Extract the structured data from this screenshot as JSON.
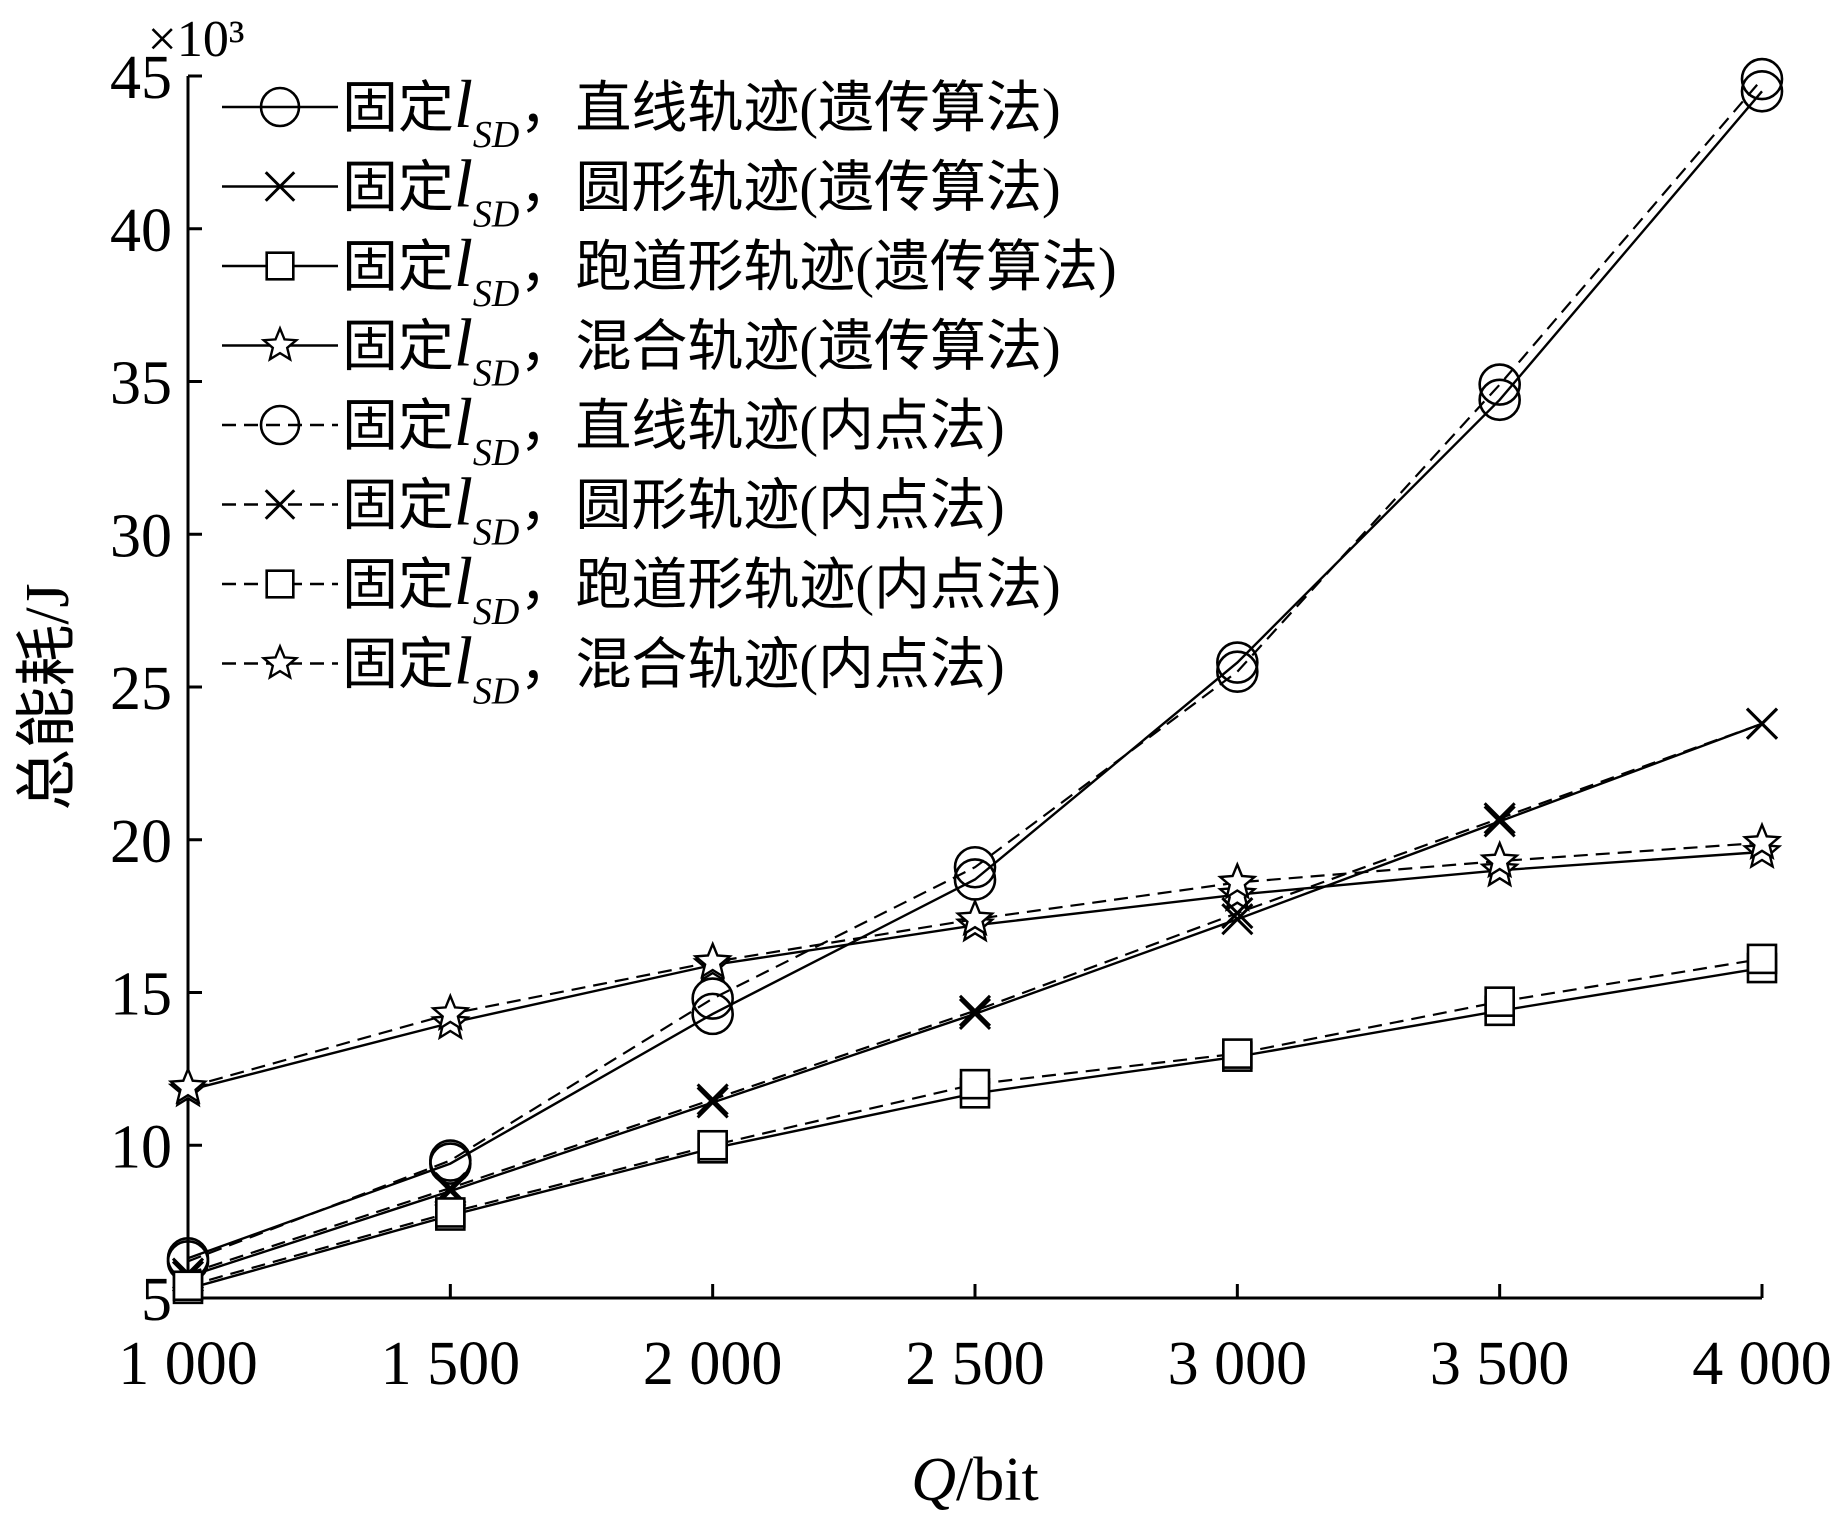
{
  "chart_data": {
    "type": "line",
    "x": [
      1000,
      1500,
      2000,
      2500,
      3000,
      3500,
      4000
    ],
    "x_tick_labels": [
      "1 000",
      "1 500",
      "2 000",
      "2 500",
      "3 000",
      "3 500",
      "4 000"
    ],
    "xlim": [
      1000,
      4000
    ],
    "ylim": [
      5,
      45
    ],
    "y_ticks": [
      5,
      10,
      15,
      20,
      25,
      30,
      35,
      40,
      45
    ],
    "y_tick_labels": [
      "5",
      "10",
      "15",
      "20",
      "25",
      "30",
      "35",
      "40",
      "45"
    ],
    "y_scale_note": "×10³",
    "xlabel": {
      "italic": "Q",
      "rest": "/bit"
    },
    "ylabel": "总能耗/J",
    "grid": false,
    "legend_placement": "top-left",
    "series": [
      {
        "label_prefix": "固定",
        "label_var": "l",
        "label_sub": "SD",
        "label_rest": "，直线轨迹(遗传算法)",
        "marker": "circle",
        "dash": "solid",
        "values": [
          6.3,
          9.4,
          14.3,
          18.7,
          25.8,
          34.4,
          44.5
        ]
      },
      {
        "label_prefix": "固定",
        "label_var": "l",
        "label_sub": "SD",
        "label_rest": "，圆形轨迹(遗传算法)",
        "marker": "x",
        "dash": "solid",
        "values": [
          5.7,
          8.5,
          11.4,
          14.3,
          17.4,
          20.6,
          23.8
        ]
      },
      {
        "label_prefix": "固定",
        "label_var": "l",
        "label_sub": "SD",
        "label_rest": "，跑道形轨迹(遗传算法)",
        "marker": "square",
        "dash": "solid",
        "values": [
          5.3,
          7.7,
          9.9,
          11.7,
          12.9,
          14.4,
          15.8
        ]
      },
      {
        "label_prefix": "固定",
        "label_var": "l",
        "label_sub": "SD",
        "label_rest": "，混合轨迹(遗传算法)",
        "marker": "star",
        "dash": "solid",
        "values": [
          11.8,
          14.0,
          15.9,
          17.2,
          18.2,
          19.0,
          19.6
        ]
      },
      {
        "label_prefix": "固定",
        "label_var": "l",
        "label_sub": "SD",
        "label_rest": "，直线轨迹(内点法)",
        "marker": "circle",
        "dash": "dashed",
        "values": [
          6.2,
          9.5,
          14.8,
          19.1,
          25.5,
          34.9,
          44.9
        ]
      },
      {
        "label_prefix": "固定",
        "label_var": "l",
        "label_sub": "SD",
        "label_rest": "，圆形轨迹(内点法)",
        "marker": "x",
        "dash": "dashed",
        "values": [
          5.8,
          8.6,
          11.5,
          14.4,
          17.6,
          20.7,
          23.8
        ]
      },
      {
        "label_prefix": "固定",
        "label_var": "l",
        "label_sub": "SD",
        "label_rest": "，跑道形轨迹(内点法)",
        "marker": "square",
        "dash": "dashed",
        "values": [
          5.4,
          7.8,
          10.0,
          12.0,
          13.0,
          14.7,
          16.1
        ]
      },
      {
        "label_prefix": "固定",
        "label_var": "l",
        "label_sub": "SD",
        "label_rest": "，混合轨迹(内点法)",
        "marker": "star",
        "dash": "dashed",
        "values": [
          11.9,
          14.3,
          16.0,
          17.4,
          18.6,
          19.3,
          19.9
        ]
      }
    ]
  }
}
